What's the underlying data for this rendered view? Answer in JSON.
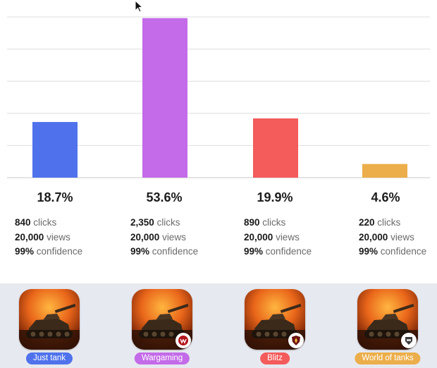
{
  "chart_data": {
    "type": "bar",
    "categories": [
      "Just tank",
      "Wargaming",
      "Blitz",
      "World of tanks"
    ],
    "values": [
      18.7,
      53.6,
      19.9,
      4.6
    ],
    "value_labels": [
      "18.7%",
      "53.6%",
      "19.9%",
      "4.6%"
    ],
    "ylim": [
      0,
      54
    ],
    "grid": true,
    "bar_colors": [
      "#4f72ec",
      "#c36be8",
      "#f45b5b",
      "#ecae4a"
    ]
  },
  "variants": [
    {
      "name": "Just tank",
      "pct": "18.7%",
      "clicks": "840",
      "clicks_label": "clicks",
      "views": "20,000",
      "views_label": "views",
      "confidence": "99%",
      "confidence_label": "confidence",
      "color": "#4f72ec",
      "badge": ""
    },
    {
      "name": "Wargaming",
      "pct": "53.6%",
      "clicks": "2,350",
      "clicks_label": "clicks",
      "views": "20,000",
      "views_label": "views",
      "confidence": "99%",
      "confidence_label": "confidence",
      "color": "#c36be8",
      "badge": "wargaming-logo-icon"
    },
    {
      "name": "Blitz",
      "pct": "19.9%",
      "clicks": "890",
      "clicks_label": "clicks",
      "views": "20,000",
      "views_label": "views",
      "confidence": "99%",
      "confidence_label": "confidence",
      "color": "#f45b5b",
      "badge": "blitz-shield-icon"
    },
    {
      "name": "World of tanks",
      "pct": "4.6%",
      "clicks": "220",
      "clicks_label": "clicks",
      "views": "20,000",
      "views_label": "views",
      "confidence": "99%",
      "confidence_label": "confidence",
      "color": "#ecae4a",
      "badge": "wot-emblem-icon"
    }
  ]
}
